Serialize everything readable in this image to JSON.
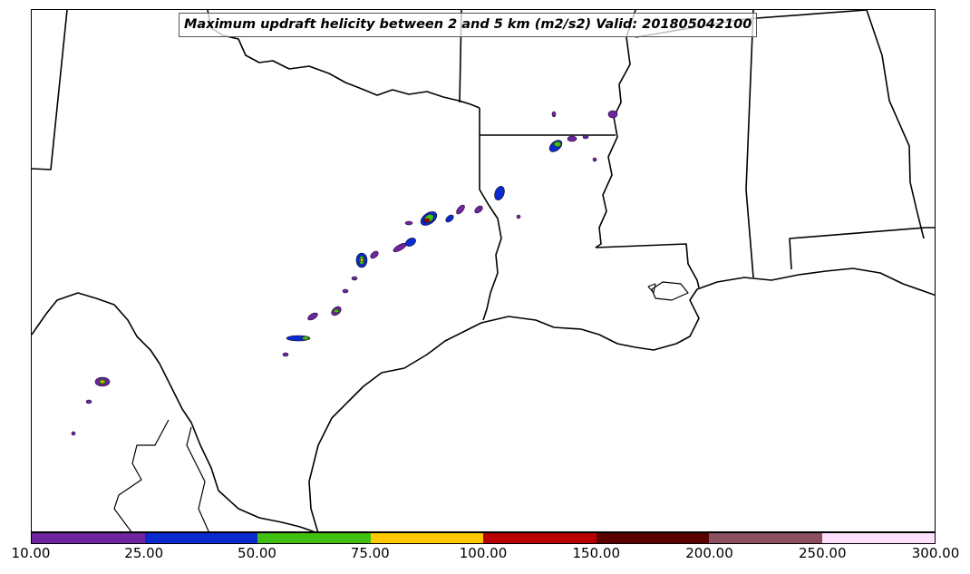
{
  "title": "Maximum updraft helicity between 2 and 5 km (m2/s2) Valid: 201805042100",
  "colorbar": {
    "ticks": [
      "10.00",
      "25.00",
      "50.00",
      "75.00",
      "100.00",
      "150.00",
      "200.00",
      "250.00",
      "300.00"
    ],
    "colors": [
      "#7025a0",
      "#0a2ad0",
      "#40c010",
      "#ffc800",
      "#b80000",
      "#5a0000",
      "#8a5060",
      "#ffe0fa"
    ]
  },
  "map": {
    "boundary_color": "#000000",
    "features": [
      "state-borders",
      "coastline",
      "rivers",
      "mexico-border"
    ]
  }
}
